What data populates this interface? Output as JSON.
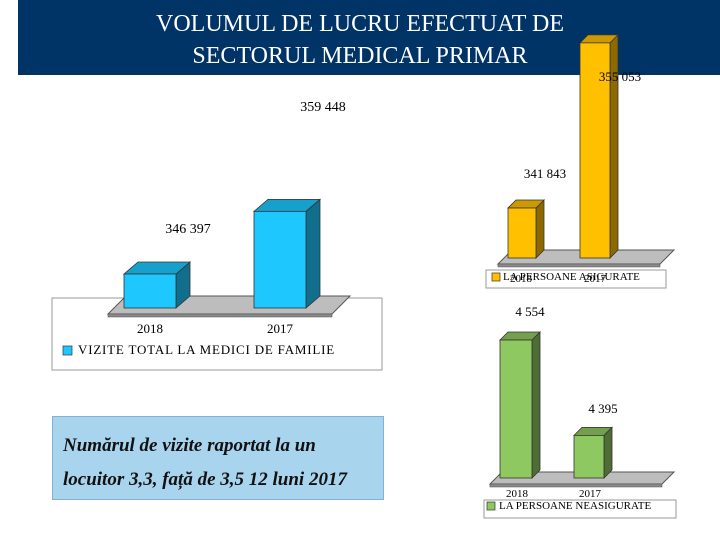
{
  "slide": {
    "title_line1": "VOLUMUL DE LUCRU EFECTUAT DE",
    "title_line2": "SECTORUL MEDICAL PRIMAR"
  },
  "note": {
    "line1": "Numărul de vizite raportat la un",
    "line2": "locuitor 3,3, față de 3,5 12 luni 2017"
  },
  "chart_data": [
    {
      "type": "bar",
      "categories": [
        "2018",
        "2017"
      ],
      "series": [
        {
          "name": "VIZITE TOTAL LA MEDICI DE FAMILIE",
          "values": [
            346397,
            359448
          ],
          "labels": [
            "346 397",
            "359 448"
          ]
        }
      ],
      "color": "#1ec8ff",
      "legend": "bottom"
    },
    {
      "type": "bar",
      "categories": [
        "2018",
        "2017"
      ],
      "series": [
        {
          "name": "LA PERSOANE ASIGURATE",
          "values": [
            341843,
            355053
          ],
          "labels": [
            "341 843",
            "355 053"
          ]
        }
      ],
      "color": "#ffc000",
      "legend": "bottom"
    },
    {
      "type": "bar",
      "categories": [
        "2018",
        "2017"
      ],
      "series": [
        {
          "name": "LA PERSOANE NEASIGURATE",
          "values": [
            4554,
            4395
          ],
          "labels": [
            "4 554",
            "4 395"
          ]
        }
      ],
      "color": "#8ec860",
      "legend": "bottom"
    }
  ]
}
